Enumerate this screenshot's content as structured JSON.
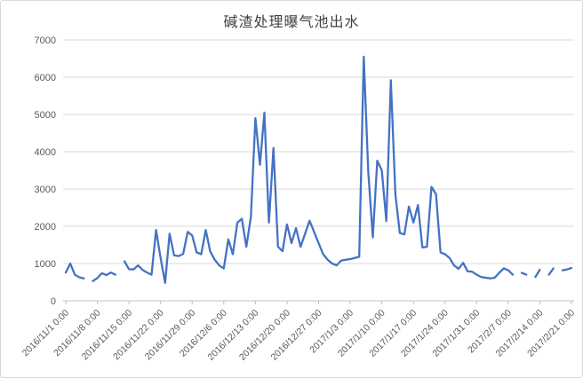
{
  "chart_data": {
    "type": "line",
    "title": "碱渣处理曝气池出水",
    "xlabel": "",
    "ylabel": "",
    "ylim": [
      0,
      7000
    ],
    "y_tick_step": 1000,
    "y_tick_labels": [
      "0",
      "1000",
      "2000",
      "3000",
      "4000",
      "5000",
      "6000",
      "7000"
    ],
    "x_tick_labels": [
      "2016/11/1 0:00",
      "2016/11/8 0:00",
      "2016/11/15 0:00",
      "2016/11/22 0:00",
      "2016/11/29 0:00",
      "2016/12/6 0:00",
      "2016/12/13 0:00",
      "2016/12/20 0:00",
      "2016/12/27 0:00",
      "2017/1/3 0:00",
      "2017/1/10 0:00",
      "2017/1/17 0:00",
      "2017/1/24 0:00",
      "2017/1/31 0:00",
      "2017/2/7 0:00",
      "2017/2/14 0:00",
      "2017/2/21 0:00"
    ],
    "x_tick_every": 7,
    "grid": "horizontal",
    "legend": "none",
    "values": [
      760,
      1000,
      700,
      630,
      600,
      null,
      530,
      610,
      740,
      690,
      760,
      700,
      null,
      1060,
      850,
      840,
      950,
      830,
      760,
      700,
      1900,
      1150,
      480,
      1800,
      1220,
      1200,
      1260,
      1850,
      1750,
      1300,
      1250,
      1900,
      1320,
      1100,
      950,
      870,
      1650,
      1250,
      2100,
      2200,
      1450,
      2250,
      4900,
      3650,
      5050,
      2100,
      4100,
      1450,
      1330,
      2050,
      1550,
      1950,
      1450,
      1800,
      2150,
      1850,
      1550,
      1250,
      1100,
      1000,
      950,
      1080,
      1100,
      1120,
      1150,
      1180,
      6550,
      3450,
      1700,
      3760,
      3500,
      2140,
      5920,
      2850,
      1820,
      1780,
      2530,
      2100,
      2570,
      1430,
      1450,
      3060,
      2860,
      1300,
      1250,
      1150,
      950,
      860,
      1020,
      790,
      780,
      700,
      640,
      620,
      600,
      620,
      750,
      870,
      820,
      700,
      null,
      750,
      700,
      null,
      640,
      830,
      null,
      700,
      870,
      null,
      820,
      840,
      880
    ],
    "colors": {
      "line": "#4472C4",
      "gridline": "#D9D9D9",
      "axis_line": "#BFBFBF",
      "tick_text": "#595959",
      "title_text": "#404040",
      "background": "#FFFFFF",
      "border": "#D9D9D9"
    }
  }
}
